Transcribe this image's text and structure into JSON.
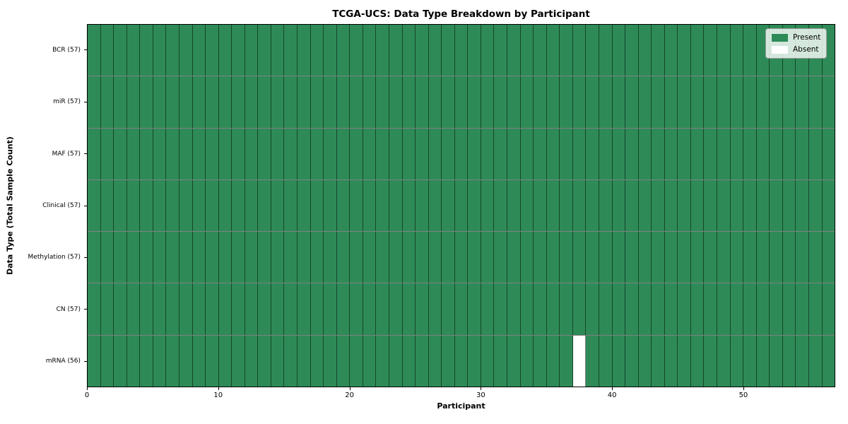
{
  "chart_data": {
    "type": "heatmap",
    "title": "TCGA-UCS: Data Type Breakdown by Participant",
    "xlabel": "Participant",
    "ylabel": "Data Type (Total Sample Count)",
    "n_participants": 57,
    "x_range": [
      0,
      57
    ],
    "x_ticks": [
      0,
      10,
      20,
      30,
      40,
      50
    ],
    "rows": [
      {
        "label": "BCR (57)",
        "present_count": 57,
        "absent_participants": []
      },
      {
        "label": "miR (57)",
        "present_count": 57,
        "absent_participants": []
      },
      {
        "label": "MAF (57)",
        "present_count": 57,
        "absent_participants": []
      },
      {
        "label": "Clinical (57)",
        "present_count": 57,
        "absent_participants": []
      },
      {
        "label": "Methylation (57)",
        "present_count": 57,
        "absent_participants": []
      },
      {
        "label": "CN (57)",
        "present_count": 57,
        "absent_participants": []
      },
      {
        "label": "mRNA (56)",
        "present_count": 56,
        "absent_participants": [
          37
        ]
      }
    ],
    "legend": {
      "position": "upper right",
      "entries": [
        {
          "label": "Present",
          "color": "#2e8b57"
        },
        {
          "label": "Absent",
          "color": "#ffffff"
        }
      ]
    },
    "colors": {
      "present": "#2e8b57",
      "absent": "#ffffff"
    }
  }
}
